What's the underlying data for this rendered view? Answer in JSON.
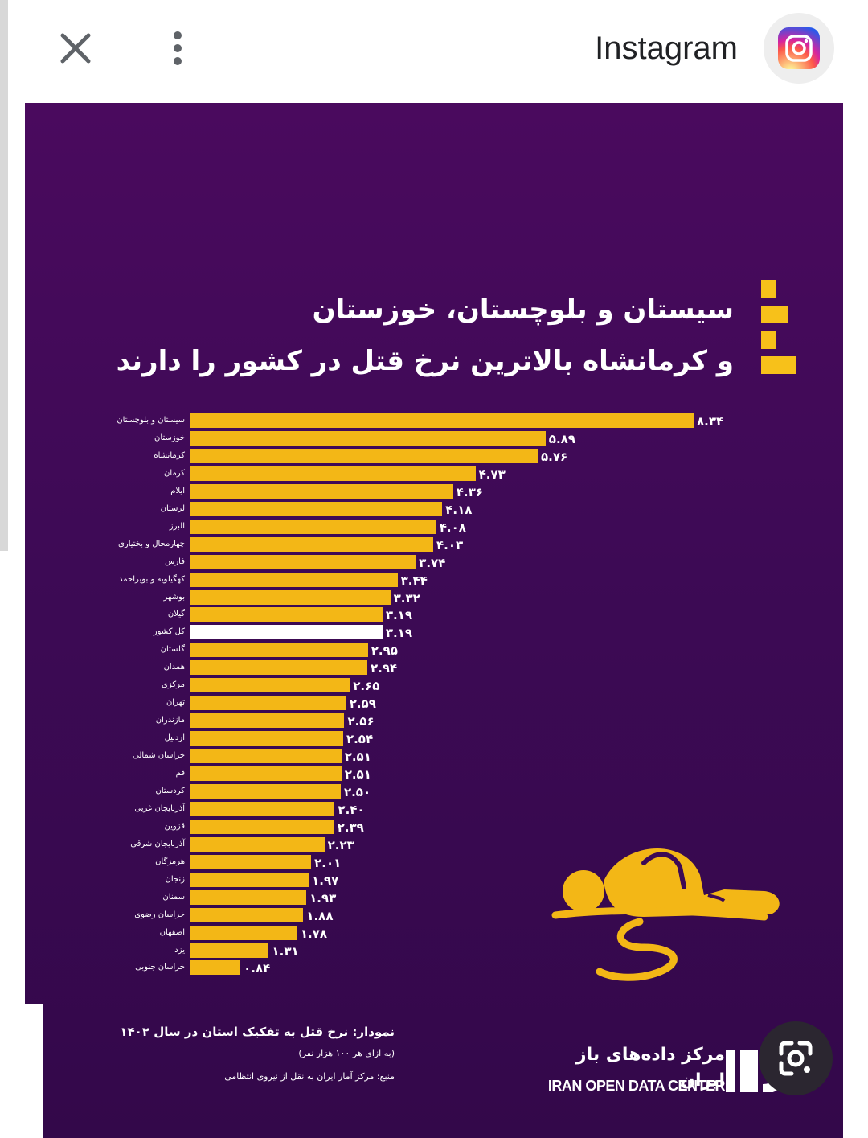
{
  "app_bar": {
    "title": "Instagram",
    "close_icon": "close-icon",
    "more_icon": "more-vertical-icon",
    "app_icon": "instagram-icon"
  },
  "poster": {
    "headline_line1": "سیستان و بلوچستان، خوزستان",
    "headline_line2": "و کرمانشاه بالاترین نرخ قتل در کشور را دارند",
    "caption_title": "نمودار: نرخ قتل به تفکیک استان در سال ۱۴۰۲",
    "caption_unit": "(به ازای هر ۱۰۰ هزار نفر)",
    "caption_source": "منبع: مرکز آمار ایران به نقل از نیروی انتظامی",
    "org_name_fa": "مرکز داده‌های باز ایران",
    "org_name_en": "IRAN OPEN DATA CENTER",
    "lens_icon": "google-lens-icon",
    "colors": {
      "background": "#3d0a55",
      "bar": "#f3b716",
      "highlight": "#ffffff"
    }
  },
  "chart_data": {
    "type": "bar",
    "orientation": "horizontal",
    "categories": [
      "سیستان و بلوچستان",
      "خوزستان",
      "کرمانشاه",
      "کرمان",
      "ایلام",
      "لرستان",
      "البرز",
      "چهارمحال و بختیاری",
      "فارس",
      "کهگیلویه و بویراحمد",
      "بوشهر",
      "گیلان",
      "کل کشور",
      "گلستان",
      "همدان",
      "مرکزی",
      "تهران",
      "مازندران",
      "اردبیل",
      "خراسان شمالی",
      "قم",
      "کردستان",
      "آذربایجان غربی",
      "قزوین",
      "آذربایجان شرقی",
      "هرمزگان",
      "زنجان",
      "سمنان",
      "خراسان رضوی",
      "اصفهان",
      "یزد",
      "خراسان جنوبی"
    ],
    "values": [
      8.34,
      5.89,
      5.76,
      4.73,
      4.36,
      4.18,
      4.08,
      4.03,
      3.74,
      3.44,
      3.32,
      3.19,
      3.19,
      2.95,
      2.94,
      2.65,
      2.59,
      2.56,
      2.54,
      2.51,
      2.51,
      2.5,
      2.4,
      2.39,
      2.23,
      2.01,
      1.97,
      1.93,
      1.88,
      1.78,
      1.31,
      0.84
    ],
    "value_labels": [
      "۸.۳۴",
      "۵.۸۹",
      "۵.۷۶",
      "۴.۷۳",
      "۴.۳۶",
      "۴.۱۸",
      "۴.۰۸",
      "۴.۰۳",
      "۳.۷۴",
      "۳.۴۴",
      "۳.۳۲",
      "۳.۱۹",
      "۳.۱۹",
      "۲.۹۵",
      "۲.۹۴",
      "۲.۶۵",
      "۲.۵۹",
      "۲.۵۶",
      "۲.۵۴",
      "۲.۵۱",
      "۲.۵۱",
      "۲.۵۰",
      "۲.۴۰",
      "۲.۳۹",
      "۲.۲۳",
      "۲.۰۱",
      "۱.۹۷",
      "۱.۹۳",
      "۱.۸۸",
      "۱.۷۸",
      "۱.۳۱",
      "۰.۸۴"
    ],
    "highlight_index": 12,
    "title": "",
    "xlabel": "",
    "ylabel": "",
    "grid": false,
    "legend": "none"
  }
}
